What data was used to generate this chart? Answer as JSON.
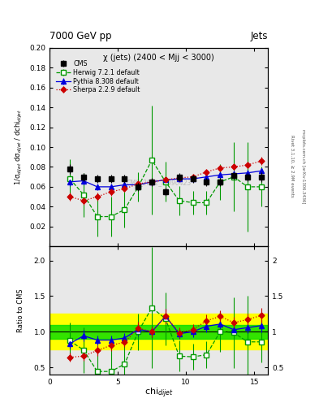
{
  "title_top": "7000 GeV pp",
  "title_right": "Jets",
  "plot_title": "χ (jets) (2400 < Mjj < 3000)",
  "ylabel_main": "1/σ$_{dijet}$ dσ$_{dijet}$ / dchi$_{dijet}$",
  "ylabel_ratio": "Ratio to CMS",
  "xlabel": "chi$_{dijet}$",
  "right_label_top": "Rivet 3.1.10, ≥ 2.9M events",
  "right_label_bot": "mcplots.cern.ch [arXiv:1306.3436]",
  "watermark": "CMS_2012_I1090423",
  "cms_x": [
    1.5,
    2.5,
    3.5,
    4.5,
    5.5,
    6.5,
    7.5,
    8.5,
    9.5,
    10.5,
    11.5,
    12.5,
    13.5,
    14.5,
    15.5
  ],
  "cms_y": [
    0.078,
    0.07,
    0.068,
    0.068,
    0.068,
    0.06,
    0.065,
    0.055,
    0.07,
    0.068,
    0.065,
    0.065,
    0.071,
    0.07,
    0.07
  ],
  "cms_yerr": [
    0.005,
    0.004,
    0.004,
    0.004,
    0.004,
    0.004,
    0.004,
    0.004,
    0.004,
    0.004,
    0.004,
    0.004,
    0.004,
    0.004,
    0.005
  ],
  "herwig_x": [
    1.5,
    2.5,
    3.5,
    4.5,
    5.5,
    6.5,
    7.5,
    8.5,
    9.5,
    10.5,
    11.5,
    12.5,
    13.5,
    14.5,
    15.5
  ],
  "herwig_y": [
    0.068,
    0.052,
    0.03,
    0.03,
    0.037,
    0.06,
    0.087,
    0.065,
    0.046,
    0.044,
    0.044,
    0.065,
    0.07,
    0.06,
    0.06
  ],
  "herwig_yerr": [
    0.02,
    0.022,
    0.02,
    0.02,
    0.018,
    0.015,
    0.055,
    0.02,
    0.015,
    0.012,
    0.012,
    0.018,
    0.035,
    0.045,
    0.02
  ],
  "pythia_x": [
    1.5,
    2.5,
    3.5,
    4.5,
    5.5,
    6.5,
    7.5,
    8.5,
    9.5,
    10.5,
    11.5,
    12.5,
    13.5,
    14.5,
    15.5
  ],
  "pythia_y": [
    0.065,
    0.066,
    0.06,
    0.06,
    0.062,
    0.062,
    0.065,
    0.067,
    0.068,
    0.068,
    0.07,
    0.072,
    0.073,
    0.074,
    0.076
  ],
  "pythia_yerr": [
    0.004,
    0.004,
    0.003,
    0.003,
    0.003,
    0.003,
    0.003,
    0.003,
    0.003,
    0.003,
    0.003,
    0.003,
    0.003,
    0.003,
    0.003
  ],
  "sherpa_x": [
    1.5,
    2.5,
    3.5,
    4.5,
    5.5,
    6.5,
    7.5,
    8.5,
    9.5,
    10.5,
    11.5,
    12.5,
    13.5,
    14.5,
    15.5
  ],
  "sherpa_y": [
    0.05,
    0.046,
    0.05,
    0.055,
    0.058,
    0.063,
    0.065,
    0.067,
    0.069,
    0.07,
    0.075,
    0.079,
    0.08,
    0.082,
    0.086
  ],
  "sherpa_yerr": [
    0.004,
    0.004,
    0.004,
    0.004,
    0.003,
    0.003,
    0.003,
    0.003,
    0.003,
    0.003,
    0.003,
    0.003,
    0.003,
    0.003,
    0.004
  ],
  "ylim_main": [
    0.0,
    0.2
  ],
  "ylim_ratio": [
    0.4,
    2.2
  ],
  "xlim": [
    0,
    16
  ],
  "ratio_green_band": 0.1,
  "ratio_yellow_band": 0.25,
  "cms_color": "black",
  "herwig_color": "#009900",
  "pythia_color": "#0000dd",
  "sherpa_color": "#cc0000",
  "bg_color": "#e8e8e8"
}
